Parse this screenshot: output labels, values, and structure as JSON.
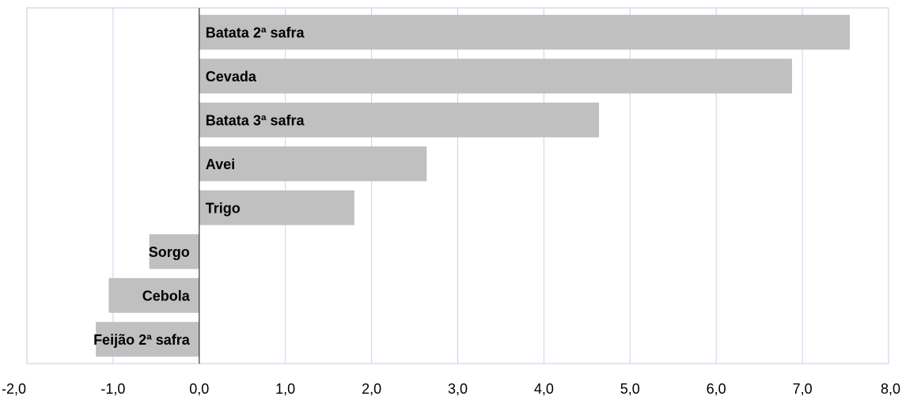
{
  "chart_data": {
    "type": "bar",
    "orientation": "horizontal",
    "categories": [
      "Batata 2ª safra",
      "Cevada",
      "Batata 3ª safra",
      "Avei",
      "Trigo",
      "Sorgo",
      "Cebola",
      "Feijão 2ª safra"
    ],
    "values": [
      7.55,
      6.88,
      4.64,
      2.64,
      1.8,
      -0.58,
      -1.05,
      -1.2
    ],
    "xlim": [
      -2.0,
      8.0
    ],
    "xticks": [
      "-2,0",
      "-1,0",
      "0,0",
      "1,0",
      "2,0",
      "3,0",
      "4,0",
      "5,0",
      "6,0",
      "7,0",
      "8,0"
    ],
    "grid": "vertical",
    "legend": "none",
    "title": "",
    "xlabel": "",
    "ylabel": "",
    "colors": {
      "bar": "#c0c0c0",
      "grid": "#d0d0ec",
      "border": "#c8c8e4"
    }
  }
}
